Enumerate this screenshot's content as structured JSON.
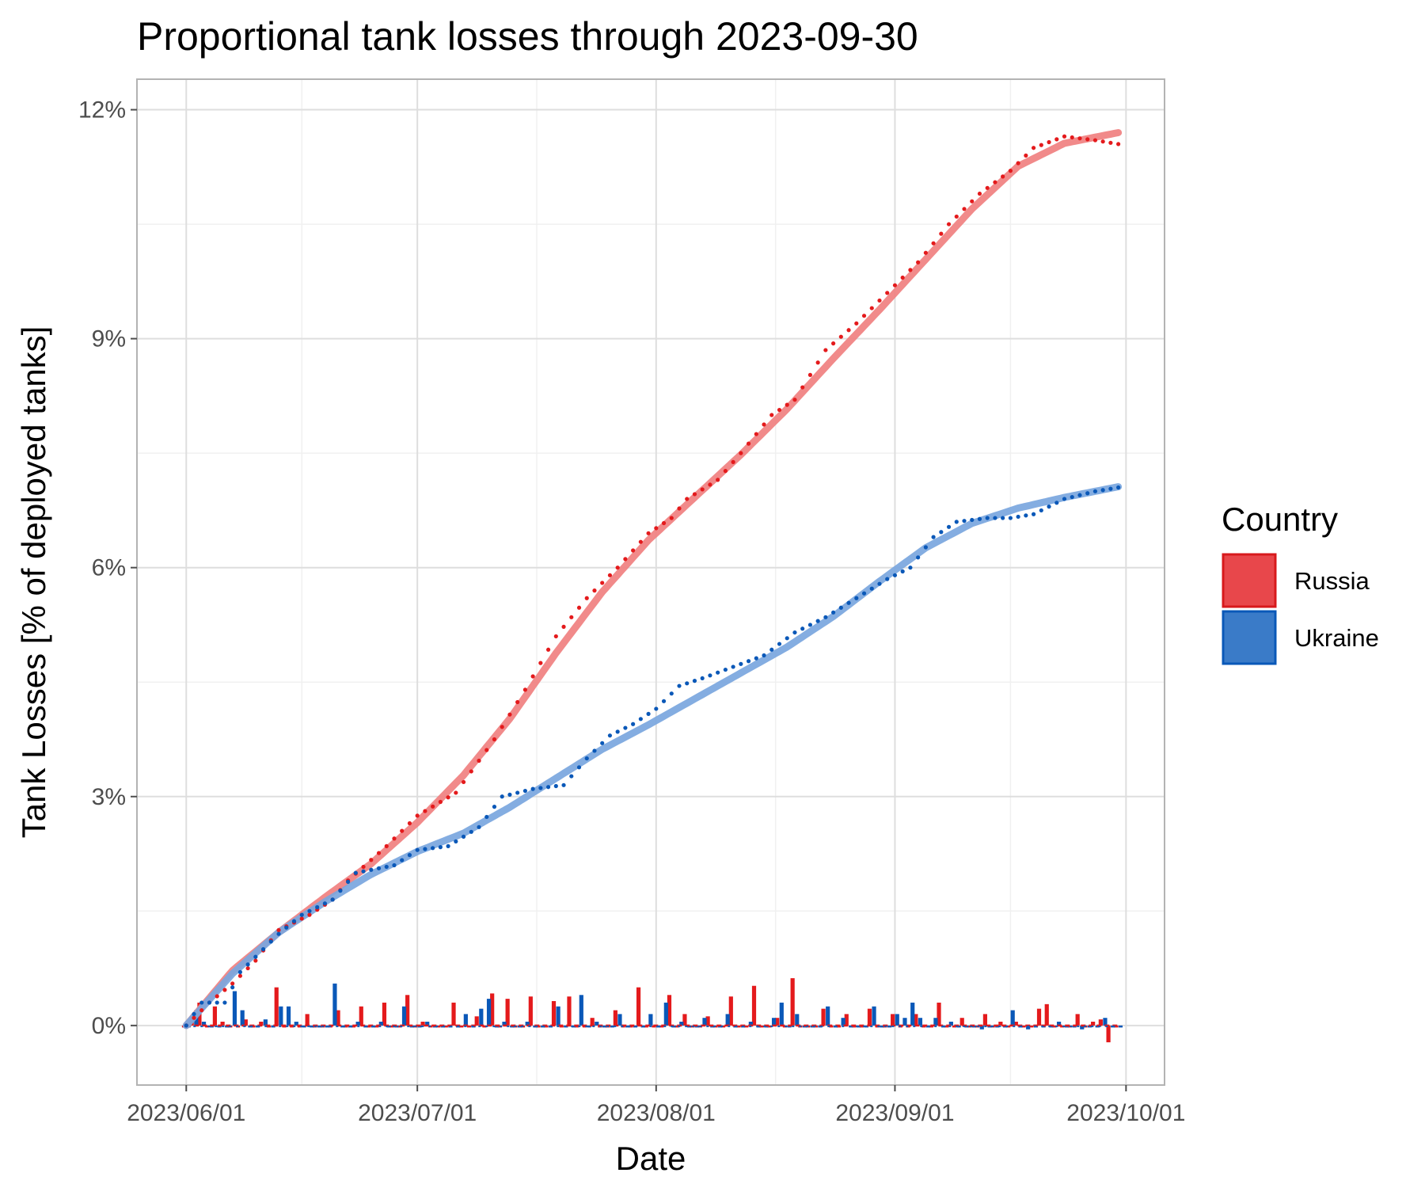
{
  "colors": {
    "russia": "#e41a1c",
    "russia_smooth": "#f08080",
    "ukraine": "#0a58b8",
    "ukraine_smooth": "#7aa6de",
    "russia_legend_fill": "#e8474b",
    "ukraine_legend_fill": "#3a7bc8"
  },
  "chart_data": {
    "type": "line",
    "title": "Proportional tank losses through 2023-09-30",
    "xlabel": "Date",
    "ylabel": "Tank Losses [% of deployed tanks]",
    "x_ticks": [
      "2023/06/01",
      "2023/07/01",
      "2023/08/01",
      "2023/09/01",
      "2023/10/01"
    ],
    "x_tick_days": [
      0,
      30,
      61,
      92,
      122
    ],
    "y_ticks": [
      "0%",
      "3%",
      "6%",
      "9%",
      "12%"
    ],
    "y_tick_values": [
      0,
      3,
      6,
      9,
      12
    ],
    "xlim_days": [
      -6.4,
      127
    ],
    "ylim": [
      -0.78,
      12.4
    ],
    "grid": true,
    "legend": {
      "title": "Country",
      "position": "right",
      "entries": [
        "Russia",
        "Ukraine"
      ]
    },
    "series": [
      {
        "name": "Russia",
        "cumulative_keypoints": [
          [
            0,
            0
          ],
          [
            3,
            0.3
          ],
          [
            6,
            0.55
          ],
          [
            9,
            0.85
          ],
          [
            12,
            1.25
          ],
          [
            16,
            1.45
          ],
          [
            19,
            1.65
          ],
          [
            21,
            1.9
          ],
          [
            26,
            2.35
          ],
          [
            30,
            2.75
          ],
          [
            35,
            3.05
          ],
          [
            40,
            3.75
          ],
          [
            44,
            4.4
          ],
          [
            48,
            5.1
          ],
          [
            52,
            5.6
          ],
          [
            56,
            6.0
          ],
          [
            60,
            6.45
          ],
          [
            63,
            6.65
          ],
          [
            65,
            6.9
          ],
          [
            69,
            7.15
          ],
          [
            72,
            7.5
          ],
          [
            76,
            8.0
          ],
          [
            79,
            8.2
          ],
          [
            83,
            8.85
          ],
          [
            87,
            9.2
          ],
          [
            91,
            9.6
          ],
          [
            95,
            10.0
          ],
          [
            99,
            10.5
          ],
          [
            103,
            10.9
          ],
          [
            107,
            11.2
          ],
          [
            110,
            11.5
          ],
          [
            114,
            11.65
          ],
          [
            118,
            11.6
          ],
          [
            121,
            11.55
          ]
        ],
        "smooth_keypoints": [
          [
            0,
            0
          ],
          [
            6,
            0.72
          ],
          [
            12,
            1.22
          ],
          [
            18,
            1.68
          ],
          [
            24,
            2.12
          ],
          [
            30,
            2.66
          ],
          [
            36,
            3.28
          ],
          [
            42,
            4.02
          ],
          [
            48,
            4.88
          ],
          [
            54,
            5.68
          ],
          [
            60,
            6.36
          ],
          [
            66,
            6.92
          ],
          [
            72,
            7.48
          ],
          [
            78,
            8.08
          ],
          [
            84,
            8.74
          ],
          [
            90,
            9.38
          ],
          [
            96,
            10.04
          ],
          [
            102,
            10.7
          ],
          [
            108,
            11.26
          ],
          [
            114,
            11.56
          ],
          [
            121,
            11.7
          ]
        ],
        "daily_keypoints": [
          [
            1,
            0.05
          ],
          [
            2,
            0.3
          ],
          [
            4,
            0.25
          ],
          [
            5,
            0.05
          ],
          [
            8,
            0.08
          ],
          [
            10,
            0.05
          ],
          [
            12,
            0.5
          ],
          [
            16,
            0.15
          ],
          [
            20,
            0.2
          ],
          [
            23,
            0.25
          ],
          [
            26,
            0.3
          ],
          [
            29,
            0.4
          ],
          [
            31,
            0.05
          ],
          [
            35,
            0.3
          ],
          [
            38,
            0.12
          ],
          [
            40,
            0.42
          ],
          [
            42,
            0.35
          ],
          [
            45,
            0.38
          ],
          [
            48,
            0.32
          ],
          [
            50,
            0.38
          ],
          [
            53,
            0.1
          ],
          [
            56,
            0.2
          ],
          [
            59,
            0.5
          ],
          [
            63,
            0.4
          ],
          [
            65,
            0.15
          ],
          [
            68,
            0.12
          ],
          [
            71,
            0.38
          ],
          [
            74,
            0.52
          ],
          [
            77,
            0.1
          ],
          [
            79,
            0.62
          ],
          [
            83,
            0.22
          ],
          [
            86,
            0.15
          ],
          [
            89,
            0.22
          ],
          [
            91,
            0.0
          ],
          [
            92,
            0.15
          ],
          [
            95,
            0.15
          ],
          [
            98,
            0.3
          ],
          [
            101,
            0.1
          ],
          [
            104,
            0.15
          ],
          [
            106,
            0.05
          ],
          [
            108,
            0.05
          ],
          [
            111,
            0.22
          ],
          [
            112,
            0.28
          ],
          [
            116,
            0.15
          ],
          [
            118,
            0.05
          ],
          [
            119,
            0.08
          ],
          [
            120,
            -0.22
          ]
        ]
      },
      {
        "name": "Ukraine",
        "cumulative_keypoints": [
          [
            0,
            0
          ],
          [
            2,
            0.3
          ],
          [
            5,
            0.3
          ],
          [
            7,
            0.7
          ],
          [
            9,
            0.9
          ],
          [
            12,
            1.2
          ],
          [
            15,
            1.45
          ],
          [
            19,
            1.65
          ],
          [
            22,
            2.0
          ],
          [
            27,
            2.1
          ],
          [
            30,
            2.3
          ],
          [
            34,
            2.35
          ],
          [
            38,
            2.6
          ],
          [
            41,
            3.0
          ],
          [
            45,
            3.1
          ],
          [
            49,
            3.15
          ],
          [
            52,
            3.5
          ],
          [
            55,
            3.8
          ],
          [
            58,
            3.95
          ],
          [
            61,
            4.15
          ],
          [
            64,
            4.45
          ],
          [
            67,
            4.55
          ],
          [
            71,
            4.7
          ],
          [
            75,
            4.85
          ],
          [
            79,
            5.15
          ],
          [
            83,
            5.35
          ],
          [
            87,
            5.6
          ],
          [
            91,
            5.85
          ],
          [
            94,
            6.0
          ],
          [
            97,
            6.4
          ],
          [
            100,
            6.6
          ],
          [
            104,
            6.65
          ],
          [
            107,
            6.65
          ],
          [
            110,
            6.7
          ],
          [
            114,
            6.9
          ],
          [
            118,
            7.0
          ],
          [
            121,
            7.05
          ]
        ],
        "smooth_keypoints": [
          [
            0,
            0
          ],
          [
            6,
            0.68
          ],
          [
            12,
            1.22
          ],
          [
            18,
            1.62
          ],
          [
            24,
            1.98
          ],
          [
            30,
            2.28
          ],
          [
            36,
            2.52
          ],
          [
            42,
            2.86
          ],
          [
            48,
            3.24
          ],
          [
            54,
            3.62
          ],
          [
            60,
            3.94
          ],
          [
            66,
            4.28
          ],
          [
            72,
            4.62
          ],
          [
            78,
            4.96
          ],
          [
            84,
            5.36
          ],
          [
            90,
            5.82
          ],
          [
            96,
            6.26
          ],
          [
            102,
            6.58
          ],
          [
            108,
            6.78
          ],
          [
            114,
            6.92
          ],
          [
            121,
            7.06
          ]
        ],
        "daily_keypoints": [
          [
            1,
            0.2
          ],
          [
            2,
            0.05
          ],
          [
            6,
            0.45
          ],
          [
            7,
            0.2
          ],
          [
            10,
            0.08
          ],
          [
            12,
            0.25
          ],
          [
            13,
            0.25
          ],
          [
            14,
            0.05
          ],
          [
            19,
            0.55
          ],
          [
            22,
            0.05
          ],
          [
            25,
            0.05
          ],
          [
            28,
            0.25
          ],
          [
            31,
            0.05
          ],
          [
            36,
            0.15
          ],
          [
            38,
            0.22
          ],
          [
            39,
            0.35
          ],
          [
            41,
            0.05
          ],
          [
            44,
            0.05
          ],
          [
            48,
            0.25
          ],
          [
            51,
            0.4
          ],
          [
            53,
            0.05
          ],
          [
            56,
            0.15
          ],
          [
            60,
            0.15
          ],
          [
            62,
            0.3
          ],
          [
            64,
            0.05
          ],
          [
            67,
            0.1
          ],
          [
            70,
            0.15
          ],
          [
            73,
            0.05
          ],
          [
            76,
            0.1
          ],
          [
            77,
            0.3
          ],
          [
            79,
            0.15
          ],
          [
            83,
            0.25
          ],
          [
            85,
            0.1
          ],
          [
            89,
            0.25
          ],
          [
            92,
            0.15
          ],
          [
            93,
            0.1
          ],
          [
            94,
            0.3
          ],
          [
            95,
            0.1
          ],
          [
            97,
            0.1
          ],
          [
            99,
            0.05
          ],
          [
            103,
            -0.05
          ],
          [
            107,
            0.2
          ],
          [
            109,
            -0.05
          ],
          [
            113,
            0.05
          ],
          [
            116,
            -0.05
          ],
          [
            119,
            0.1
          ]
        ]
      }
    ]
  }
}
